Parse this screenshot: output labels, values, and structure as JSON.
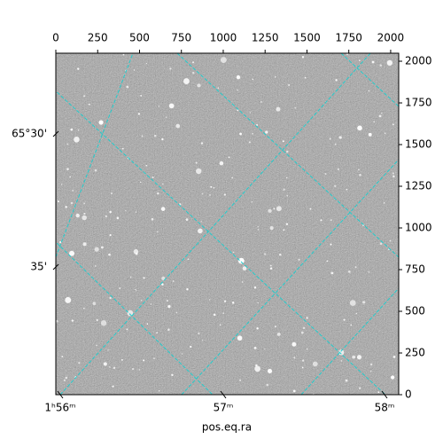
{
  "chart_data": {
    "type": "image",
    "xlabel": "pos.eq.ra",
    "xlim": [
      0,
      2048
    ],
    "xticks": [
      0,
      250,
      500,
      750,
      1000,
      1250,
      1500,
      1750,
      2000
    ],
    "ylim": [
      0,
      2048
    ],
    "yticks": [
      0,
      250,
      500,
      750,
      1000,
      1250,
      1500,
      1750,
      2000
    ],
    "ra_labels": [
      "1ʰ56ᵐ",
      "57ᵐ",
      "58ᵐ"
    ],
    "dec_labels": [
      "65°30'",
      "35'"
    ],
    "grid_color": "#22cccc"
  }
}
